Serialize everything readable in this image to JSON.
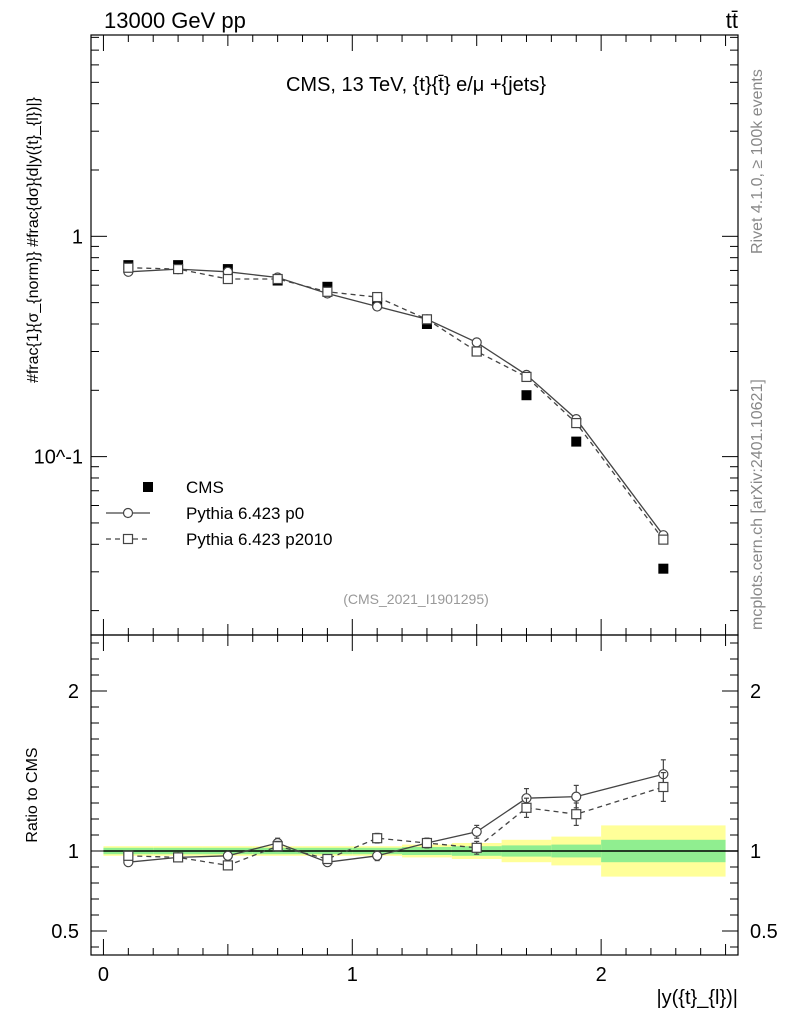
{
  "header": {
    "left_label": "13000 GeV pp",
    "right_label": "tt̄"
  },
  "side_texts": {
    "rivet": "Rivet 4.1.0, ≥ 100k events",
    "mcplots": "mcplots.cern.ch [arXiv:2401.10621]"
  },
  "chart_data": [
    {
      "type": "scatter",
      "title": "CMS, 13 TeV, {t}{t̄} e/μ +{jets}",
      "watermark": "(CMS_2021_I1901295)",
      "ylabel": "#frac{1}{σ_{norm}} #frac{dσ}{d|y({t}_{l})|}",
      "yscale": "log",
      "ylim": [
        0.0155,
        8.2
      ],
      "xlim": [
        -0.05,
        2.55
      ],
      "yticks": [
        {
          "value": 1,
          "label": "1"
        },
        {
          "value": 0.1,
          "label": "10^-1"
        }
      ],
      "legend_position": "lower-left",
      "x": [
        0.1,
        0.3,
        0.5,
        0.7,
        0.9,
        1.1,
        1.3,
        1.5,
        1.7,
        1.9,
        2.25
      ],
      "series": [
        {
          "name": "CMS",
          "marker": "filled-square",
          "values": [
            0.74,
            0.74,
            0.71,
            0.63,
            0.59,
            0.5,
            0.4,
            0.3,
            0.19,
            0.117,
            0.031
          ]
        },
        {
          "name": "Pythia 6.423 p0",
          "marker": "open-circle",
          "line": "solid",
          "values": [
            0.69,
            0.71,
            0.69,
            0.65,
            0.55,
            0.48,
            0.42,
            0.33,
            0.235,
            0.148,
            0.044
          ]
        },
        {
          "name": "Pythia 6.423 p2010",
          "marker": "open-square",
          "line": "dashed",
          "values": [
            0.72,
            0.71,
            0.64,
            0.64,
            0.56,
            0.53,
            0.42,
            0.3,
            0.23,
            0.142,
            0.042
          ]
        }
      ]
    },
    {
      "type": "scatter",
      "ylabel": "Ratio to CMS",
      "xlabel": "|y({t}_{l})|",
      "ylim": [
        0.35,
        2.35
      ],
      "xlim": [
        -0.05,
        2.55
      ],
      "xticks": [
        {
          "value": 0,
          "label": "0"
        },
        {
          "value": 1,
          "label": "1"
        },
        {
          "value": 2,
          "label": "2"
        }
      ],
      "yticks": [
        {
          "value": 2,
          "label": "2"
        },
        {
          "value": 1,
          "label": "1"
        },
        {
          "value": 0.5,
          "label": "0.5"
        }
      ],
      "x": [
        0.1,
        0.3,
        0.5,
        0.7,
        0.9,
        1.1,
        1.3,
        1.5,
        1.7,
        1.9,
        2.25
      ],
      "bin_edges": [
        0.0,
        0.2,
        0.4,
        0.6,
        0.8,
        1.0,
        1.2,
        1.4,
        1.6,
        1.8,
        2.0,
        2.5
      ],
      "band_inner": [
        0.02,
        0.02,
        0.02,
        0.02,
        0.02,
        0.02,
        0.025,
        0.03,
        0.035,
        0.04,
        0.07
      ],
      "band_outer": [
        0.03,
        0.03,
        0.03,
        0.03,
        0.03,
        0.03,
        0.04,
        0.05,
        0.07,
        0.09,
        0.16
      ],
      "series": [
        {
          "name": "Pythia 6.423 p0",
          "marker": "open-circle",
          "line": "solid",
          "values": [
            0.93,
            0.96,
            0.97,
            1.05,
            0.93,
            0.97,
            1.05,
            1.12,
            1.33,
            1.34,
            1.48
          ],
          "errors": [
            0.02,
            0.02,
            0.02,
            0.03,
            0.02,
            0.03,
            0.03,
            0.04,
            0.06,
            0.07,
            0.09
          ]
        },
        {
          "name": "Pythia 6.423 p2010",
          "marker": "open-square",
          "line": "dashed",
          "values": [
            0.97,
            0.96,
            0.91,
            1.03,
            0.95,
            1.08,
            1.05,
            1.02,
            1.27,
            1.23,
            1.4
          ],
          "errors": [
            0.02,
            0.02,
            0.02,
            0.03,
            0.02,
            0.03,
            0.03,
            0.04,
            0.06,
            0.07,
            0.09
          ]
        }
      ]
    }
  ]
}
